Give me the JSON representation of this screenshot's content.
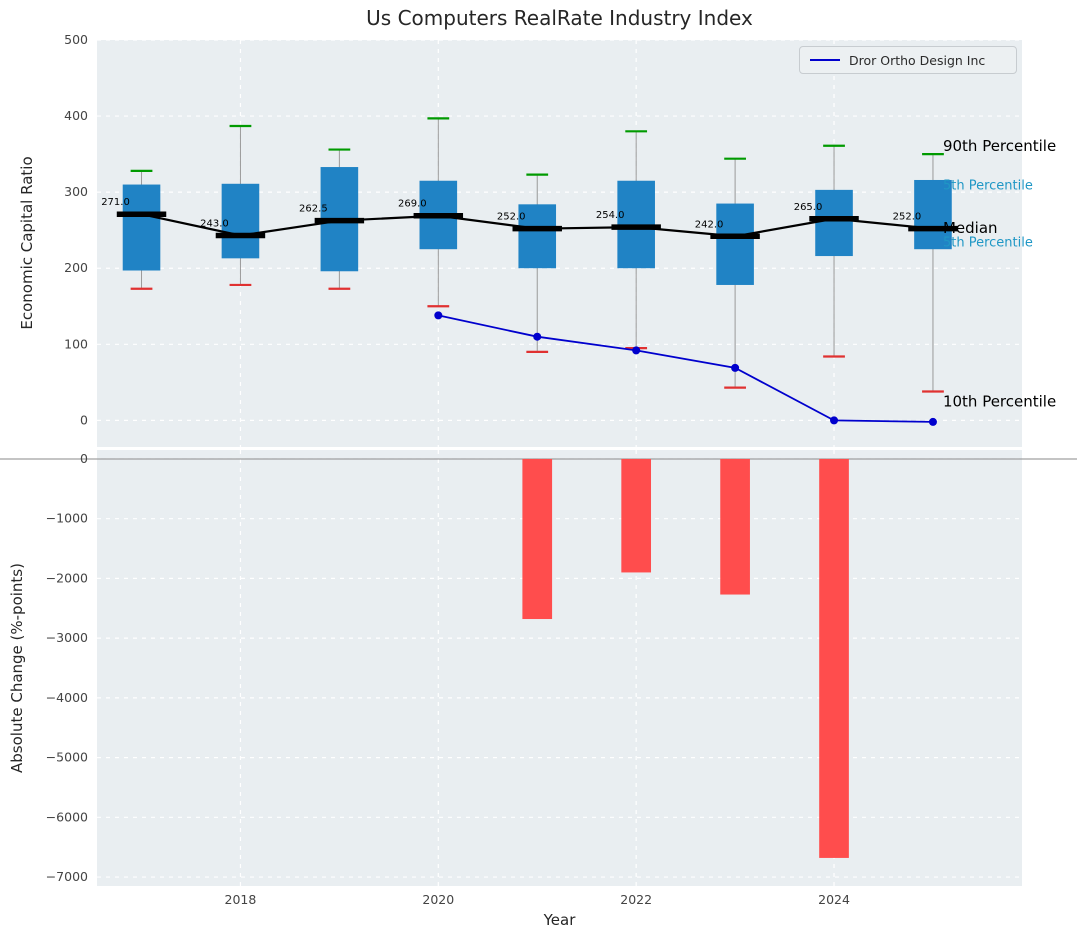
{
  "title": "Us Computers RealRate Industry Index",
  "legend": {
    "label": "Dror Ortho Design Inc"
  },
  "colors": {
    "box": "#2083c5",
    "cap_high": "#009a00",
    "cap_low": "#e03131",
    "median": "#000000",
    "company_line": "#0000cd",
    "bars": "#ff4d4d",
    "whisker": "#9a9a9a",
    "axes_bg": "#e9eef1",
    "grid": "#ffffff",
    "annotation_blue": "#1f97c5",
    "tick": "#444444",
    "zero_line": "#8a8a8a"
  },
  "chart_data": [
    {
      "type": "boxplot+line",
      "title": "Us Computers RealRate Industry Index",
      "ylabel": "Economic Capital Ratio",
      "ylim": [
        -35,
        500
      ],
      "yticks": [
        0,
        100,
        200,
        300,
        400,
        500
      ],
      "categories": [
        2017,
        2018,
        2019,
        2020,
        2021,
        2022,
        2023,
        2024,
        2025
      ],
      "boxes": [
        {
          "year": 2017,
          "p90": 328,
          "p75": 310,
          "median": 271.0,
          "p25": 197,
          "p10": 173
        },
        {
          "year": 2018,
          "p90": 387,
          "p75": 311,
          "median": 243.0,
          "p25": 213,
          "p10": 178
        },
        {
          "year": 2019,
          "p90": 356,
          "p75": 333,
          "median": 262.5,
          "p25": 196,
          "p10": 173
        },
        {
          "year": 2020,
          "p90": 397,
          "p75": 315,
          "median": 269.0,
          "p25": 225,
          "p10": 150
        },
        {
          "year": 2021,
          "p90": 323,
          "p75": 284,
          "median": 252.0,
          "p25": 200,
          "p10": 90
        },
        {
          "year": 2022,
          "p90": 380,
          "p75": 315,
          "median": 254.0,
          "p25": 200,
          "p10": 95
        },
        {
          "year": 2023,
          "p90": 344,
          "p75": 285,
          "median": 242.0,
          "p25": 178,
          "p10": 43
        },
        {
          "year": 2024,
          "p90": 361,
          "p75": 303,
          "median": 265.0,
          "p25": 216,
          "p10": 84
        },
        {
          "year": 2025,
          "p90": 350,
          "p75": 316,
          "median": 252.0,
          "p25": 225,
          "p10": 38
        }
      ],
      "median_labels": [
        "271.0",
        "243.0",
        "262.5",
        "269.0",
        "252.0",
        "254.0",
        "242.0",
        "265.0",
        "252.0"
      ],
      "company_series": {
        "name": "Dror Ortho Design Inc",
        "x": [
          2020,
          2021,
          2022,
          2023,
          2024,
          2025
        ],
        "y": [
          138,
          110,
          92,
          69,
          0,
          -2
        ]
      },
      "annotations": [
        {
          "text": "90th Percentile",
          "color": "#000000",
          "size": 15,
          "value": 360
        },
        {
          "text": "5th Percentile",
          "color": "#1f97c5",
          "size": 13,
          "value": 308
        },
        {
          "text": "Median",
          "color": "#000000",
          "size": 15,
          "value": 252
        },
        {
          "text": "5th Percentile",
          "color": "#1f97c5",
          "size": 13,
          "value": 233
        },
        {
          "text": "10th Percentile",
          "color": "#000000",
          "size": 15,
          "value": 24
        }
      ],
      "legend_position": "upper right",
      "grid": true
    },
    {
      "type": "bar",
      "ylabel": "Absolute Change (%-points)",
      "xlabel": "Year",
      "ylim": [
        -7150,
        150
      ],
      "yticks": [
        0,
        -1000,
        -2000,
        -3000,
        -4000,
        -5000,
        -6000,
        -7000
      ],
      "xticks": [
        2018,
        2020,
        2022,
        2024
      ],
      "x": [
        2021,
        2022,
        2023,
        2024
      ],
      "values": [
        -2680,
        -1900,
        -2270,
        -6680
      ],
      "grid": true
    }
  ]
}
